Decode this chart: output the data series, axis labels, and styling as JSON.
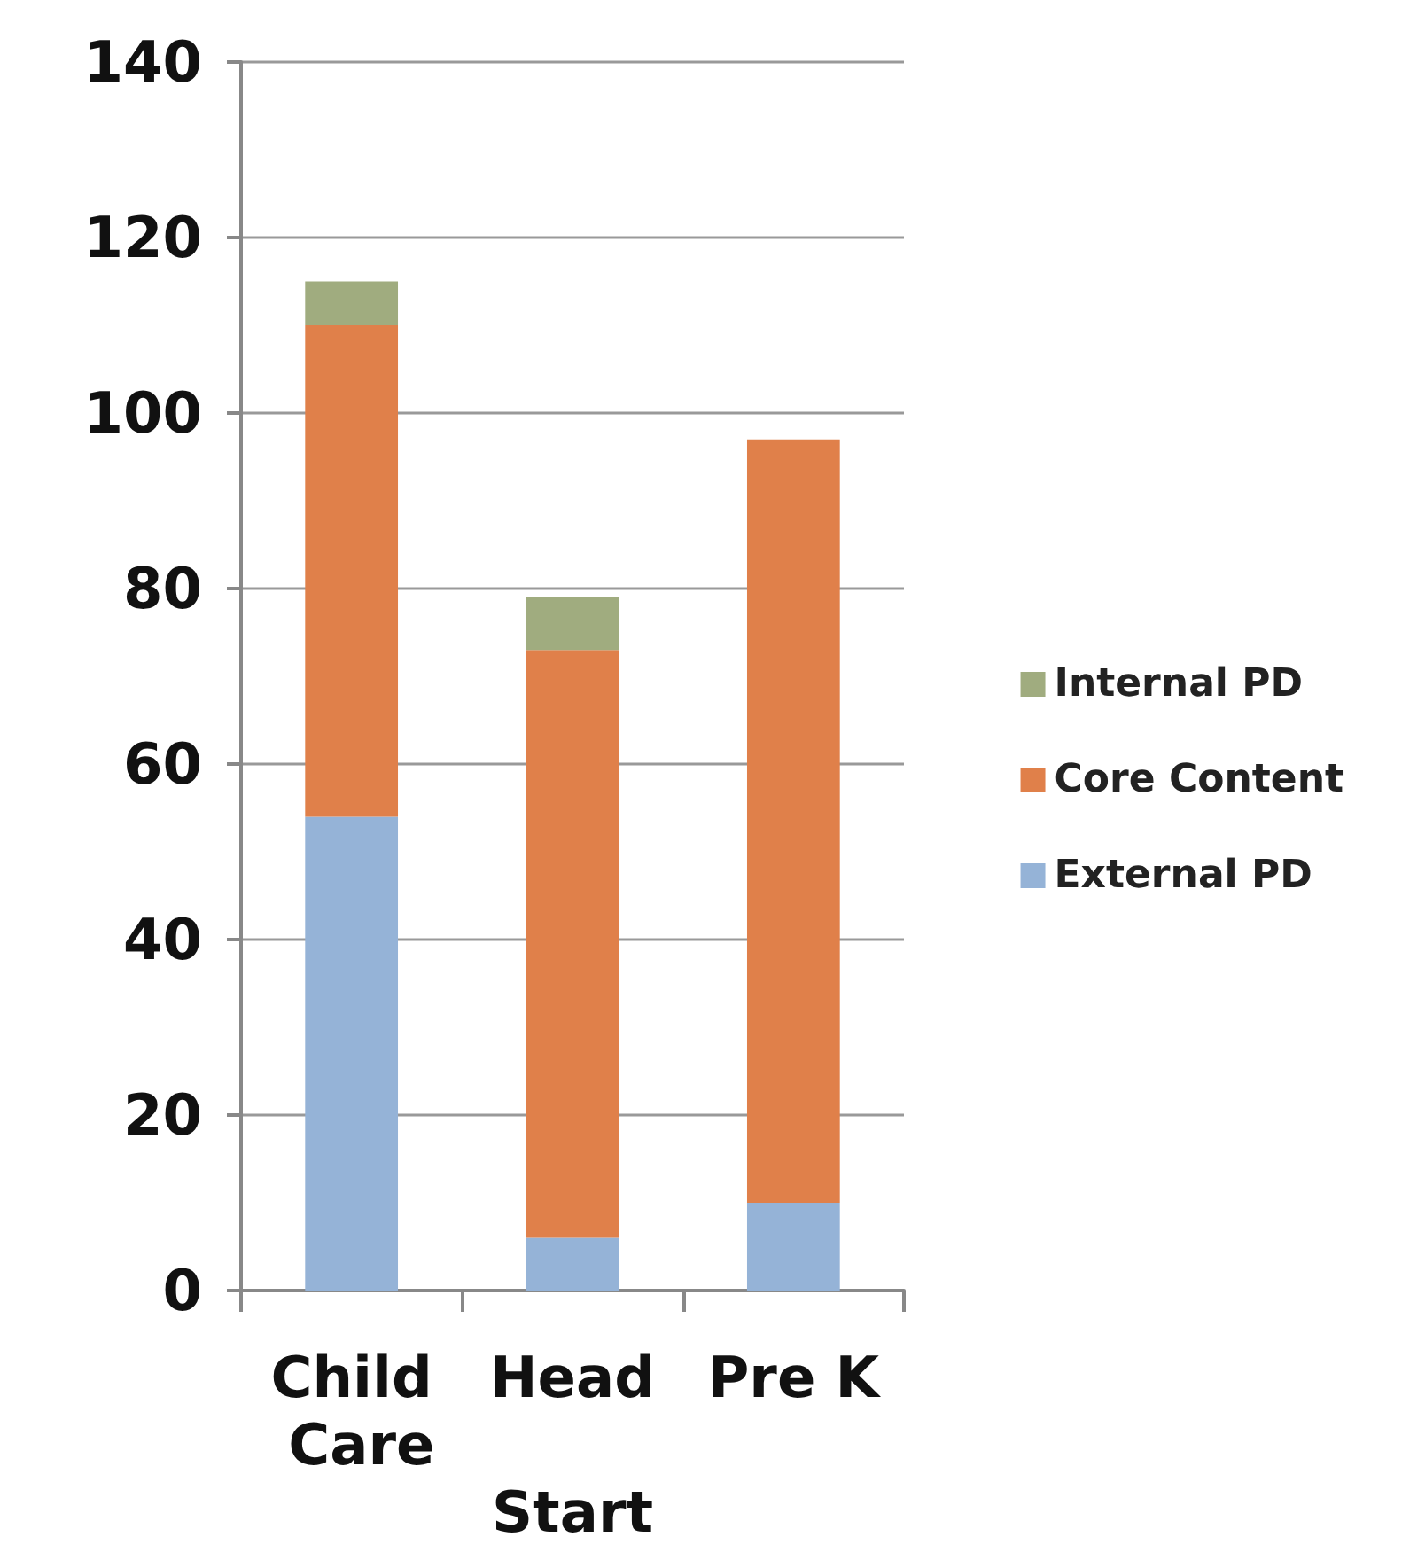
{
  "chart_data": {
    "type": "bar",
    "stacked": true,
    "categories": [
      "Child Care",
      "Head Start",
      "Pre K"
    ],
    "series": [
      {
        "name": "External PD",
        "color": "#95b3d7",
        "values": [
          54,
          6,
          10
        ]
      },
      {
        "name": "Core Content",
        "color": "#e0804a",
        "values": [
          56,
          67,
          87
        ]
      },
      {
        "name": "Internal PD",
        "color": "#a0ac7f",
        "values": [
          5,
          6,
          null
        ]
      }
    ],
    "ylim": [
      0,
      140
    ],
    "yticks": [
      0,
      20,
      40,
      60,
      80,
      100,
      120,
      140
    ],
    "grid": "y",
    "legend": "right"
  }
}
